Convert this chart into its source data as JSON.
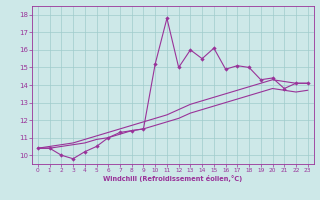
{
  "xlabel": "Windchill (Refroidissement éolien,°C)",
  "xlim": [
    -0.5,
    23.5
  ],
  "ylim": [
    9.5,
    18.5
  ],
  "xticks": [
    0,
    1,
    2,
    3,
    4,
    5,
    6,
    7,
    8,
    9,
    10,
    11,
    12,
    13,
    14,
    15,
    16,
    17,
    18,
    19,
    20,
    21,
    22,
    23
  ],
  "yticks": [
    10,
    11,
    12,
    13,
    14,
    15,
    16,
    17,
    18
  ],
  "bg_color": "#cde8e8",
  "line_color": "#993399",
  "grid_color": "#a0cccc",
  "line1_x": [
    0,
    1,
    2,
    3,
    4,
    5,
    6,
    7,
    8,
    9,
    10,
    11,
    12,
    13,
    14,
    15,
    16,
    17,
    18,
    19,
    20,
    21,
    22,
    23
  ],
  "line1_y": [
    10.4,
    10.4,
    10.0,
    9.8,
    10.2,
    10.5,
    11.0,
    11.3,
    11.4,
    11.5,
    15.2,
    17.8,
    15.0,
    16.0,
    15.5,
    16.1,
    14.9,
    15.1,
    15.0,
    14.3,
    14.4,
    13.8,
    14.1,
    14.1
  ],
  "line2_x": [
    0,
    1,
    2,
    3,
    4,
    5,
    6,
    7,
    8,
    9,
    10,
    11,
    12,
    13,
    14,
    15,
    16,
    17,
    18,
    19,
    20,
    21,
    22,
    23
  ],
  "line2_y": [
    10.4,
    10.5,
    10.6,
    10.7,
    10.9,
    11.1,
    11.3,
    11.5,
    11.7,
    11.9,
    12.1,
    12.3,
    12.6,
    12.9,
    13.1,
    13.3,
    13.5,
    13.7,
    13.9,
    14.1,
    14.3,
    14.2,
    14.1,
    14.1
  ],
  "line3_x": [
    0,
    1,
    2,
    3,
    4,
    5,
    6,
    7,
    8,
    9,
    10,
    11,
    12,
    13,
    14,
    15,
    16,
    17,
    18,
    19,
    20,
    21,
    22,
    23
  ],
  "line3_y": [
    10.4,
    10.4,
    10.5,
    10.6,
    10.7,
    10.9,
    11.0,
    11.2,
    11.4,
    11.5,
    11.7,
    11.9,
    12.1,
    12.4,
    12.6,
    12.8,
    13.0,
    13.2,
    13.4,
    13.6,
    13.8,
    13.7,
    13.6,
    13.7
  ]
}
